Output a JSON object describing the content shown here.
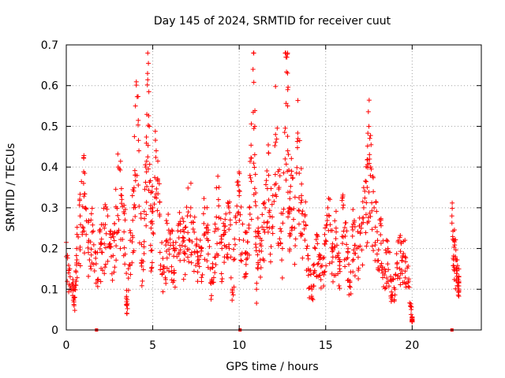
{
  "chart_data": {
    "type": "scatter",
    "title": "Day 145 of 2024, SRMTID for receiver cuut",
    "xlabel": "GPS time / hours",
    "ylabel": "SRMTID / TECUs",
    "xlim": [
      0,
      24
    ],
    "ylim": [
      0,
      0.7
    ],
    "x_ticks": [
      0,
      5,
      10,
      15,
      20
    ],
    "x_tick_labels": [
      "0",
      "5",
      "10",
      "15",
      "20"
    ],
    "y_ticks": [
      0,
      0.1,
      0.2,
      0.3,
      0.4,
      0.5,
      0.6,
      0.7
    ],
    "y_tick_labels": [
      "0",
      "0.1",
      "0.2",
      "0.3",
      "0.4",
      "0.5",
      "0.6",
      "0.7"
    ],
    "grid": true,
    "marker": "+",
    "color": "#ff0000",
    "series": [
      {
        "name": "SRMTID",
        "description_points": "envelope of the scattered measurements (hours, TECU)",
        "x": [
          0.0,
          0.2,
          0.4,
          0.5,
          0.6,
          0.8,
          1.0,
          1.1,
          1.3,
          1.5,
          1.8,
          2.0,
          2.2,
          2.4,
          2.6,
          2.8,
          3.0,
          3.2,
          3.4,
          3.5,
          3.7,
          3.9,
          4.0,
          4.2,
          4.4,
          4.6,
          4.7,
          4.8,
          4.9,
          5.0,
          5.2,
          5.4,
          5.6,
          5.8,
          6.0,
          6.2,
          6.4,
          6.6,
          6.8,
          7.0,
          7.2,
          7.4,
          7.6,
          7.8,
          8.0,
          8.2,
          8.4,
          8.6,
          8.8,
          9.0,
          9.2,
          9.4,
          9.6,
          9.8,
          10.0,
          10.2,
          10.4,
          10.6,
          10.8,
          10.9,
          11.0,
          11.1,
          11.3,
          11.5,
          11.7,
          11.9,
          12.1,
          12.3,
          12.5,
          12.7,
          12.8,
          12.9,
          13.0,
          13.2,
          13.4,
          13.6,
          13.8,
          14.0,
          14.2,
          14.4,
          14.6,
          14.8,
          15.0,
          15.2,
          15.4,
          15.6,
          15.8,
          16.0,
          16.2,
          16.4,
          16.6,
          16.8,
          17.0,
          17.2,
          17.4,
          17.5,
          17.6,
          17.8,
          18.0,
          18.2,
          18.4,
          18.6,
          18.8,
          19.0,
          19.2,
          19.4,
          19.6,
          19.8,
          20.0,
          22.3,
          22.4,
          22.5,
          22.6,
          22.7
        ],
        "y": [
          0.18,
          0.15,
          0.1,
          0.08,
          0.2,
          0.28,
          0.36,
          0.3,
          0.22,
          0.24,
          0.19,
          0.21,
          0.25,
          0.28,
          0.18,
          0.24,
          0.4,
          0.33,
          0.27,
          0.06,
          0.22,
          0.3,
          0.55,
          0.44,
          0.12,
          0.4,
          0.63,
          0.5,
          0.25,
          0.3,
          0.44,
          0.28,
          0.15,
          0.22,
          0.24,
          0.2,
          0.18,
          0.26,
          0.22,
          0.28,
          0.3,
          0.24,
          0.18,
          0.2,
          0.3,
          0.22,
          0.12,
          0.26,
          0.32,
          0.2,
          0.24,
          0.3,
          0.1,
          0.28,
          0.33,
          0.26,
          0.19,
          0.3,
          0.64,
          0.5,
          0.1,
          0.25,
          0.22,
          0.3,
          0.38,
          0.25,
          0.48,
          0.35,
          0.2,
          0.67,
          0.55,
          0.3,
          0.38,
          0.25,
          0.47,
          0.33,
          0.28,
          0.15,
          0.1,
          0.2,
          0.18,
          0.14,
          0.22,
          0.28,
          0.2,
          0.25,
          0.15,
          0.3,
          0.21,
          0.12,
          0.26,
          0.2,
          0.24,
          0.3,
          0.35,
          0.5,
          0.4,
          0.3,
          0.22,
          0.27,
          0.15,
          0.2,
          0.12,
          0.1,
          0.22,
          0.17,
          0.18,
          0.12,
          0.03,
          0.28,
          0.22,
          0.18,
          0.15,
          0.12
        ]
      },
      {
        "name": "zero-markers",
        "x": [
          1.75,
          10.05,
          22.3
        ],
        "y": [
          0,
          0,
          0
        ]
      }
    ]
  }
}
